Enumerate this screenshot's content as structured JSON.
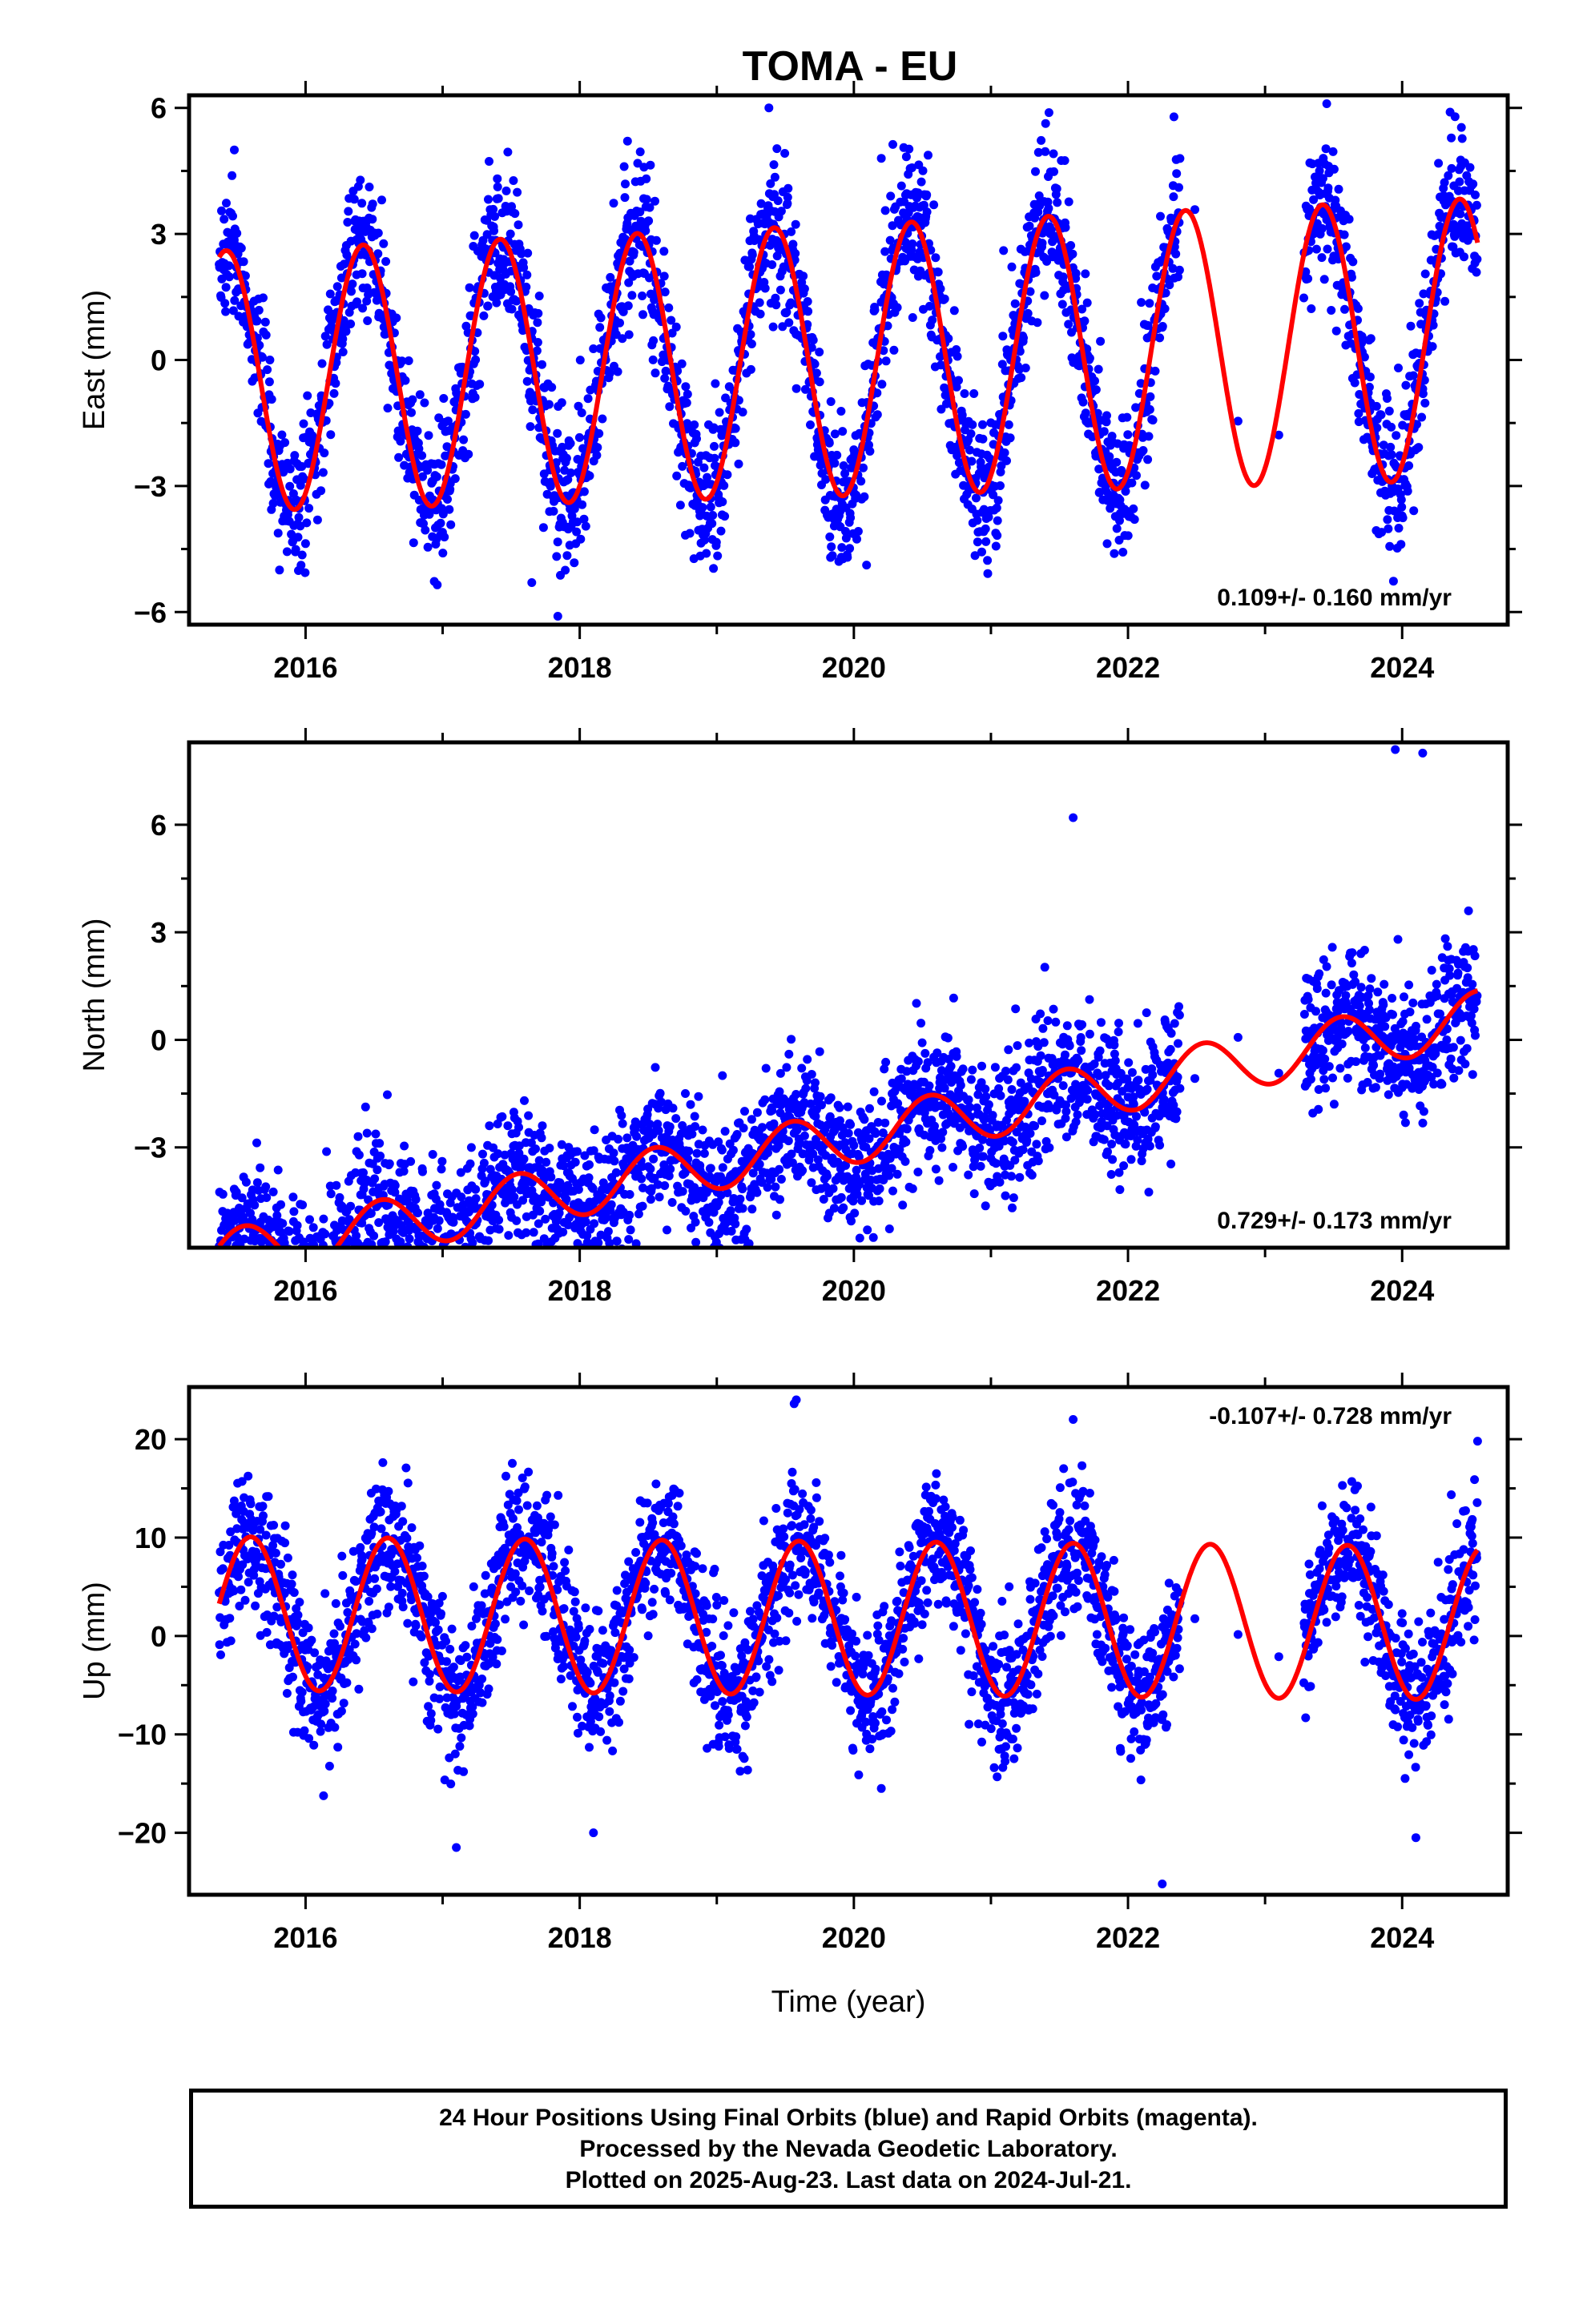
{
  "title": "TOMA - EU",
  "xlabel": "Time (year)",
  "colors": {
    "points": "#0000ff",
    "model": "#ff0000",
    "frame": "#000000"
  },
  "footer": {
    "line1": "24 Hour Positions Using Final Orbits (blue) and Rapid Orbits (magenta).",
    "line2": "Processed by the Nevada Geodetic Laboratory.",
    "line3": "Plotted on 2025-Aug-23. Last data on 2024-Jul-21."
  },
  "chart_data": [
    {
      "type": "scatter",
      "component": "east",
      "ylabel": "East (mm)",
      "rate_label": "0.109+/- 0.160 mm/yr",
      "rate_position": "bottom-right",
      "xlim": [
        2015.15,
        2024.77
      ],
      "ylim": [
        -6.3,
        6.3
      ],
      "xticks": [
        2016,
        2018,
        2020,
        2022,
        2024
      ],
      "xtick_labels": [
        "2016",
        "2018",
        "2020",
        "2022",
        "2024"
      ],
      "yticks": [
        -6,
        -3,
        0,
        3,
        6
      ],
      "ytick_labels": [
        "−6",
        "−3",
        "0",
        "3",
        "6"
      ],
      "data_range": [
        2015.37,
        2024.55
      ],
      "gaps": [
        [
          2022.38,
          2023.28
        ]
      ],
      "model": {
        "rate": 0.109,
        "amplitude": 3.1,
        "peak_phase": 0.42,
        "offset": 0.0,
        "amp_growth": 0.08
      },
      "scatter_sd": 0.9,
      "outliers": [
        [
          2015.48,
          5.0
        ],
        [
          2017.65,
          -5.3
        ],
        [
          2017.84,
          -6.1
        ],
        [
          2019.38,
          6.0
        ],
        [
          2020.2,
          4.8
        ],
        [
          2023.45,
          6.1
        ],
        [
          2024.35,
          5.9
        ],
        [
          2023.85,
          -4.1
        ],
        [
          2015.81,
          -5.0
        ]
      ]
    },
    {
      "type": "scatter",
      "component": "north",
      "ylabel": "North (mm)",
      "rate_label": "0.729+/- 0.173 mm/yr",
      "rate_position": "bottom-right",
      "xlim": [
        2015.15,
        2024.77
      ],
      "ylim": [
        -5.8,
        8.3
      ],
      "xticks": [
        2016,
        2018,
        2020,
        2022,
        2024
      ],
      "xtick_labels": [
        "2016",
        "2018",
        "2020",
        "2022",
        "2024"
      ],
      "yticks": [
        -3,
        0,
        3,
        6
      ],
      "ytick_labels": [
        "−3",
        "0",
        "3",
        "6"
      ],
      "data_range": [
        2015.37,
        2024.55
      ],
      "gaps": [
        [
          2022.38,
          2023.28
        ]
      ],
      "model": {
        "rate": 0.729,
        "amplitude": 0.75,
        "peak_phase": 0.55,
        "offset": -2.7,
        "amp_growth": 0.0
      },
      "scatter_sd": 0.95,
      "outliers": [
        [
          2021.6,
          6.2
        ],
        [
          2023.95,
          8.1
        ],
        [
          2024.15,
          8.0
        ],
        [
          2017.15,
          -4.6
        ],
        [
          2018.25,
          -5.1
        ],
        [
          2015.6,
          -5.6
        ],
        [
          2022.35,
          -2.2
        ],
        [
          2019.25,
          -4.3
        ]
      ]
    },
    {
      "type": "scatter",
      "component": "up",
      "ylabel": "Up (mm)",
      "rate_label": "-0.107+/- 0.728 mm/yr",
      "rate_position": "top-right",
      "xlim": [
        2015.15,
        2024.77
      ],
      "ylim": [
        -26.3,
        25.3
      ],
      "xticks": [
        2016,
        2018,
        2020,
        2022,
        2024
      ],
      "xtick_labels": [
        "2016",
        "2018",
        "2020",
        "2022",
        "2024"
      ],
      "yticks": [
        -20,
        -10,
        0,
        10,
        20
      ],
      "ytick_labels": [
        "−20",
        "−10",
        "0",
        "10",
        "20"
      ],
      "data_range": [
        2015.37,
        2024.55
      ],
      "gaps": [
        [
          2022.38,
          2023.28
        ]
      ],
      "model": {
        "rate": -0.107,
        "amplitude": 7.8,
        "peak_phase": 0.6,
        "offset": 1.8,
        "amp_growth": 0.0
      },
      "scatter_sd": 3.6,
      "outliers": [
        [
          2019.58,
          24.0
        ],
        [
          2022.25,
          -25.2
        ],
        [
          2021.6,
          22.0
        ],
        [
          2017.1,
          -21.5
        ],
        [
          2024.1,
          -20.5
        ],
        [
          2024.55,
          19.8
        ],
        [
          2020.2,
          -15.5
        ],
        [
          2018.1,
          -20.0
        ]
      ]
    }
  ]
}
